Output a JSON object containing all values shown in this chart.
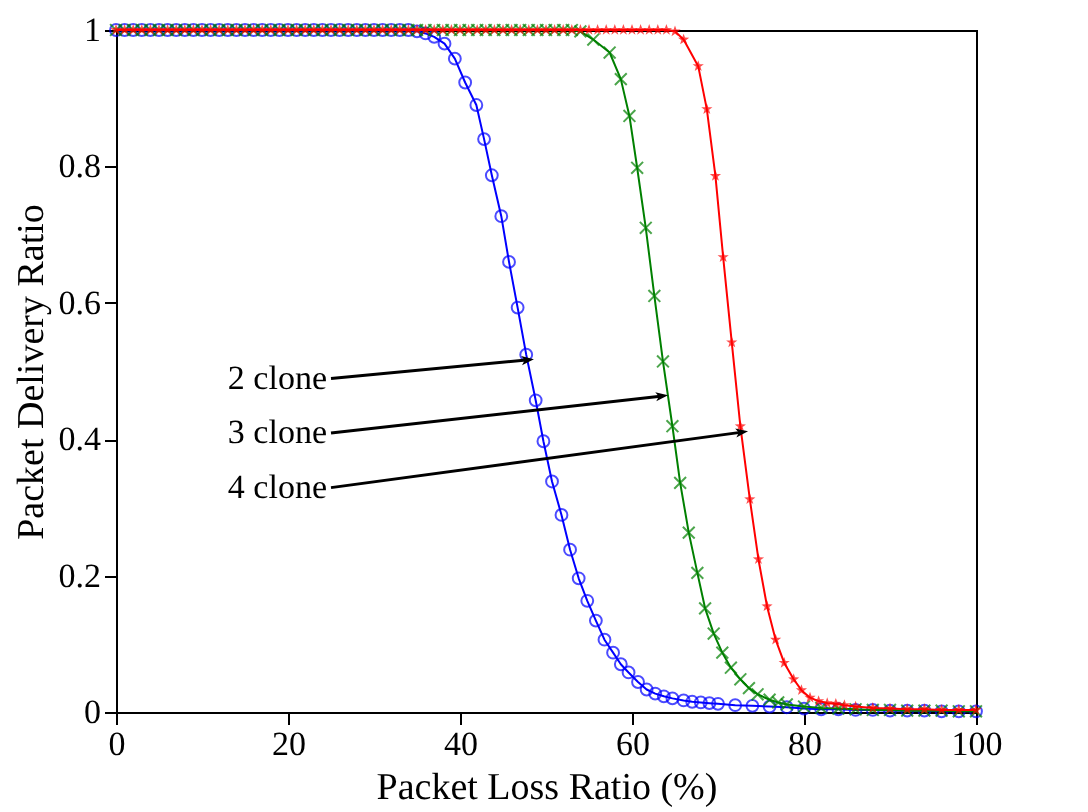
{
  "chart_data": {
    "type": "line",
    "xlabel": "Packet Loss Ratio (%)",
    "ylabel": "Packet Delivery Ratio",
    "xlim": [
      0,
      100
    ],
    "ylim": [
      0,
      1
    ],
    "xticks": [
      0,
      20,
      40,
      60,
      80,
      100
    ],
    "yticks": [
      0,
      0.2,
      0.4,
      0.6,
      0.8,
      1
    ],
    "grid": false,
    "line_style": "solid",
    "series": [
      {
        "color": "#0000ff",
        "marker": "circle",
        "x": [
          0,
          1,
          2,
          3,
          4,
          5,
          6,
          7,
          8,
          9,
          10,
          11,
          12,
          13,
          14,
          15,
          16,
          17,
          18,
          19,
          20,
          21,
          22,
          23,
          24,
          25,
          26,
          27,
          28,
          29,
          30,
          31,
          32,
          33,
          34,
          35,
          36,
          37,
          38.2,
          39.4,
          40.6,
          41.9,
          42.8,
          43.7,
          44.8,
          45.7,
          46.7,
          47.7,
          48.8,
          49.7,
          50.7,
          51.8,
          52.8,
          53.8,
          54.8,
          55.8,
          56.8,
          57.8,
          58.7,
          59.6,
          60.7,
          61.7,
          62.7,
          63.7,
          64.7,
          66,
          67,
          68,
          69,
          70,
          72,
          74,
          76,
          78,
          80,
          82,
          84,
          86,
          88,
          90,
          92,
          94,
          96,
          98,
          100
        ],
        "values": [
          1,
          1,
          1,
          1,
          1,
          1,
          1,
          1,
          1,
          1,
          1,
          1,
          1,
          1,
          1,
          1,
          1,
          1,
          1,
          1,
          1,
          1,
          1,
          1,
          1,
          1,
          1,
          1,
          1,
          1,
          1,
          1,
          1,
          1,
          1,
          0.998,
          0.995,
          0.99,
          0.98,
          0.958,
          0.923,
          0.89,
          0.84,
          0.787,
          0.727,
          0.66,
          0.593,
          0.524,
          0.457,
          0.397,
          0.338,
          0.289,
          0.238,
          0.196,
          0.163,
          0.134,
          0.106,
          0.087,
          0.07,
          0.058,
          0.044,
          0.033,
          0.027,
          0.023,
          0.02,
          0.017,
          0.015,
          0.014,
          0.013,
          0.012,
          0.01,
          0.009,
          0.008,
          0.007,
          0.005,
          0.004,
          0.004,
          0.003,
          0.003,
          0.002,
          0.002,
          0.002,
          0.001,
          0.001,
          0.001
        ]
      },
      {
        "color": "#008000",
        "marker": "cross",
        "x": [
          0,
          1,
          2,
          3,
          4,
          5,
          6,
          7,
          8,
          9,
          10,
          11,
          12,
          13,
          14,
          15,
          16,
          17,
          18,
          19,
          20,
          21,
          22,
          23,
          24,
          25,
          26,
          27,
          28,
          29,
          30,
          31,
          32,
          33,
          34,
          35,
          36,
          37,
          38,
          39,
          40,
          41,
          42,
          43,
          44,
          45,
          46,
          47,
          48,
          49,
          50,
          51,
          52,
          53,
          54,
          55.5,
          57.4,
          58.7,
          59.7,
          60.6,
          61.6,
          62.6,
          63.6,
          64.7,
          65.6,
          66.6,
          67.6,
          68.5,
          69.5,
          70.5,
          71.5,
          72.6,
          73.6,
          74.6,
          76,
          77,
          78,
          80,
          82,
          84,
          86,
          88,
          90,
          92,
          94,
          96,
          98,
          100
        ],
        "values": [
          1,
          1,
          1,
          1,
          1,
          1,
          1,
          1,
          1,
          1,
          1,
          1,
          1,
          1,
          1,
          1,
          1,
          1,
          1,
          1,
          1,
          1,
          1,
          1,
          1,
          1,
          1,
          1,
          1,
          1,
          1,
          1,
          1,
          1,
          1,
          1,
          1,
          1,
          1,
          1,
          1,
          1,
          1,
          1,
          1,
          1,
          1,
          1,
          1,
          1,
          1,
          1,
          1,
          1,
          0.998,
          0.986,
          0.967,
          0.928,
          0.874,
          0.798,
          0.71,
          0.61,
          0.514,
          0.419,
          0.336,
          0.263,
          0.204,
          0.152,
          0.115,
          0.087,
          0.065,
          0.048,
          0.035,
          0.026,
          0.018,
          0.014,
          0.011,
          0.008,
          0.006,
          0.005,
          0.004,
          0.003,
          0.003,
          0.002,
          0.002,
          0.002,
          0.001,
          0.001
        ]
      },
      {
        "color": "#ff0000",
        "marker": "star",
        "x": [
          0,
          1,
          2,
          3,
          4,
          5,
          6,
          7,
          8,
          9,
          10,
          11,
          12,
          13,
          14,
          15,
          16,
          17,
          18,
          19,
          20,
          21,
          22,
          23,
          24,
          25,
          26,
          27,
          28,
          29,
          30,
          31,
          32,
          33,
          34,
          35,
          36,
          37,
          38,
          39,
          40,
          41,
          42,
          43,
          44,
          45,
          46,
          47,
          48,
          49,
          50,
          51,
          52,
          53,
          54,
          55,
          56,
          57,
          58,
          59,
          60,
          61,
          62,
          63,
          64,
          65,
          66,
          67.7,
          68.7,
          69.7,
          70.6,
          71.6,
          72.6,
          73.7,
          74.7,
          75.7,
          76.7,
          77.7,
          78.8,
          79.7,
          80.7,
          81.7,
          82.7,
          83.7,
          84.7,
          86,
          88,
          90,
          92,
          94,
          96,
          98,
          100
        ],
        "values": [
          1,
          1,
          1,
          1,
          1,
          1,
          1,
          1,
          1,
          1,
          1,
          1,
          1,
          1,
          1,
          1,
          1,
          1,
          1,
          1,
          1,
          1,
          1,
          1,
          1,
          1,
          1,
          1,
          1,
          1,
          1,
          1,
          1,
          1,
          1,
          1,
          1,
          1,
          1,
          1,
          1,
          1,
          1,
          1,
          1,
          1,
          1,
          1,
          1,
          1,
          1,
          1,
          1,
          1,
          1,
          1,
          1,
          1,
          1,
          1,
          1,
          1,
          1,
          1,
          1,
          0.998,
          0.986,
          0.947,
          0.884,
          0.786,
          0.667,
          0.542,
          0.419,
          0.312,
          0.224,
          0.155,
          0.106,
          0.072,
          0.048,
          0.032,
          0.021,
          0.016,
          0.013,
          0.012,
          0.01,
          0.008,
          0.006,
          0.005,
          0.004,
          0.004,
          0.003,
          0.003,
          0.003
        ]
      }
    ],
    "annotations": [
      {
        "text": "2 clone",
        "x": 47.7,
        "y": 0.516
      },
      {
        "text": "3 clone",
        "x": 63.3,
        "y": 0.463
      },
      {
        "text": "4 clone",
        "x": 72.6,
        "y": 0.41
      }
    ]
  }
}
